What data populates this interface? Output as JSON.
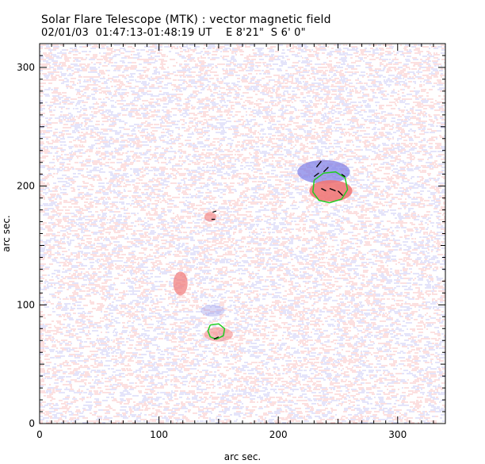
{
  "header": {
    "title": "Solar Flare Telescope (MTK) : vector magnetic field",
    "subtitle": "02/01/03  01:47:13-01:48:19 UT    E 8'21\"  S 6' 0\""
  },
  "chart_data": {
    "type": "heatmap",
    "title": "Solar Flare Telescope (MTK) : vector magnetic field",
    "subtitle": "02/01/03  01:47:13-01:48:19 UT    E 8'21\"  S 6' 0\"",
    "xlabel": "arc sec.",
    "ylabel": "arc sec.",
    "xlim": [
      0,
      340
    ],
    "ylim": [
      0,
      320
    ],
    "xticks": [
      0,
      100,
      200,
      300
    ],
    "yticks": [
      0,
      100,
      200,
      300
    ],
    "grid": false,
    "colors": {
      "positive": "#f07878",
      "negative": "#7a7ae6",
      "contour": "#22cc22",
      "vectors": "#000000"
    },
    "regions": [
      {
        "polarity": "negative",
        "x": 238,
        "y": 212,
        "rx": 22,
        "ry": 10,
        "strength": 0.7
      },
      {
        "polarity": "positive",
        "x": 244,
        "y": 196,
        "rx": 18,
        "ry": 9,
        "strength": 0.9
      },
      {
        "polarity": "positive",
        "x": 118,
        "y": 118,
        "rx": 6,
        "ry": 10,
        "strength": 0.7
      },
      {
        "polarity": "positive",
        "x": 143,
        "y": 174,
        "rx": 5,
        "ry": 4,
        "strength": 0.6
      },
      {
        "polarity": "positive",
        "x": 150,
        "y": 75,
        "rx": 12,
        "ry": 6,
        "strength": 0.5
      },
      {
        "polarity": "negative",
        "x": 145,
        "y": 95,
        "rx": 10,
        "ry": 5,
        "strength": 0.3
      }
    ],
    "contours": [
      {
        "points": [
          [
            230,
            205
          ],
          [
            238,
            211
          ],
          [
            248,
            212
          ],
          [
            256,
            207
          ],
          [
            258,
            197
          ],
          [
            253,
            189
          ],
          [
            243,
            186
          ],
          [
            234,
            188
          ],
          [
            229,
            195
          ],
          [
            230,
            205
          ]
        ]
      },
      {
        "points": [
          [
            143,
            83
          ],
          [
            150,
            84
          ],
          [
            155,
            80
          ],
          [
            154,
            74
          ],
          [
            148,
            71
          ],
          [
            143,
            73
          ],
          [
            141,
            78
          ],
          [
            143,
            83
          ]
        ]
      }
    ],
    "vectors": [
      {
        "x": 232,
        "y": 216,
        "dx": 4,
        "dy": 5
      },
      {
        "x": 238,
        "y": 212,
        "dx": 4,
        "dy": 4
      },
      {
        "x": 230,
        "y": 208,
        "dx": 4,
        "dy": 3
      },
      {
        "x": 253,
        "y": 210,
        "dx": 3,
        "dy": -2
      },
      {
        "x": 243,
        "y": 198,
        "dx": 5,
        "dy": -2
      },
      {
        "x": 250,
        "y": 196,
        "dx": 4,
        "dy": -4
      },
      {
        "x": 236,
        "y": 198,
        "dx": 4,
        "dy": -2
      },
      {
        "x": 145,
        "y": 178,
        "dx": 3,
        "dy": 1
      },
      {
        "x": 144,
        "y": 172,
        "dx": 3,
        "dy": 0
      },
      {
        "x": 146,
        "y": 71,
        "dx": 4,
        "dy": 2
      }
    ]
  }
}
